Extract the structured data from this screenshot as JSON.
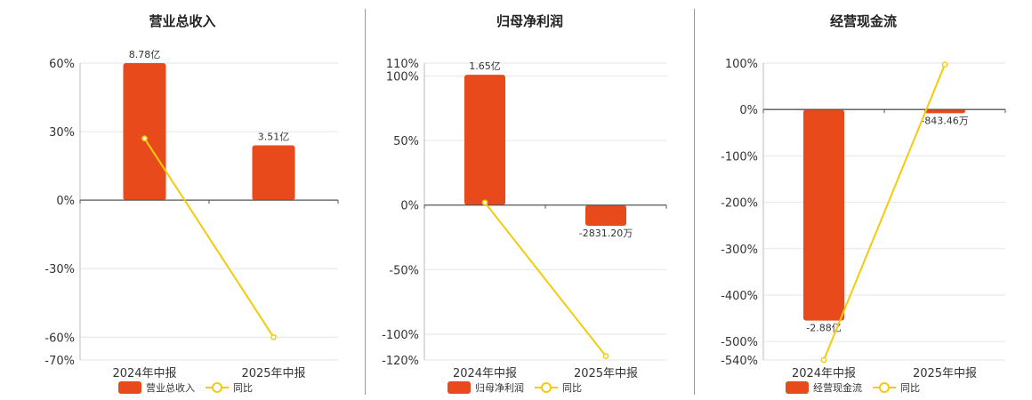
{
  "colors": {
    "bar": "#E84A1B",
    "line": "#F2CC0C",
    "grid": "#E6E6E6",
    "axis": "#555555"
  },
  "chart_data": [
    {
      "type": "bar",
      "title": "营业总收入",
      "categories": [
        "2024年中报",
        "2025年中报"
      ],
      "yticks": [
        "60%",
        "30%",
        "0%",
        "-30%",
        "-60%",
        "-70%"
      ],
      "ylim": [
        -70,
        60
      ],
      "series": [
        {
          "name": "营业总收入",
          "type": "bar",
          "values": [
            60,
            24
          ],
          "labels": [
            "8.78亿",
            "3.51亿"
          ]
        },
        {
          "name": "同比",
          "type": "line",
          "values": [
            27,
            -60
          ]
        }
      ],
      "legend": "bottom"
    },
    {
      "type": "bar",
      "title": "归母净利润",
      "categories": [
        "2024年中报",
        "2025年中报"
      ],
      "yticks": [
        "110%",
        "100%",
        "50%",
        "0%",
        "-50%",
        "-100%",
        "-120%"
      ],
      "ylim": [
        -120,
        110
      ],
      "series": [
        {
          "name": "归母净利润",
          "type": "bar",
          "values": [
            101,
            -16
          ],
          "labels": [
            "1.65亿",
            "-2831.20万"
          ]
        },
        {
          "name": "同比",
          "type": "line",
          "values": [
            2,
            -117
          ]
        }
      ],
      "legend": "bottom"
    },
    {
      "type": "bar",
      "title": "经营现金流",
      "categories": [
        "2024年中报",
        "2025年中报"
      ],
      "yticks": [
        "100%",
        "0%",
        "-100%",
        "-200%",
        "-300%",
        "-400%",
        "-500%",
        "-540%"
      ],
      "ylim": [
        -540,
        100
      ],
      "series": [
        {
          "name": "经营现金流",
          "type": "bar",
          "values": [
            -455,
            -8
          ],
          "labels": [
            "-2.88亿",
            "-843.46万"
          ]
        },
        {
          "name": "同比",
          "type": "line",
          "values": [
            -540,
            97
          ]
        }
      ],
      "legend": "bottom"
    }
  ]
}
